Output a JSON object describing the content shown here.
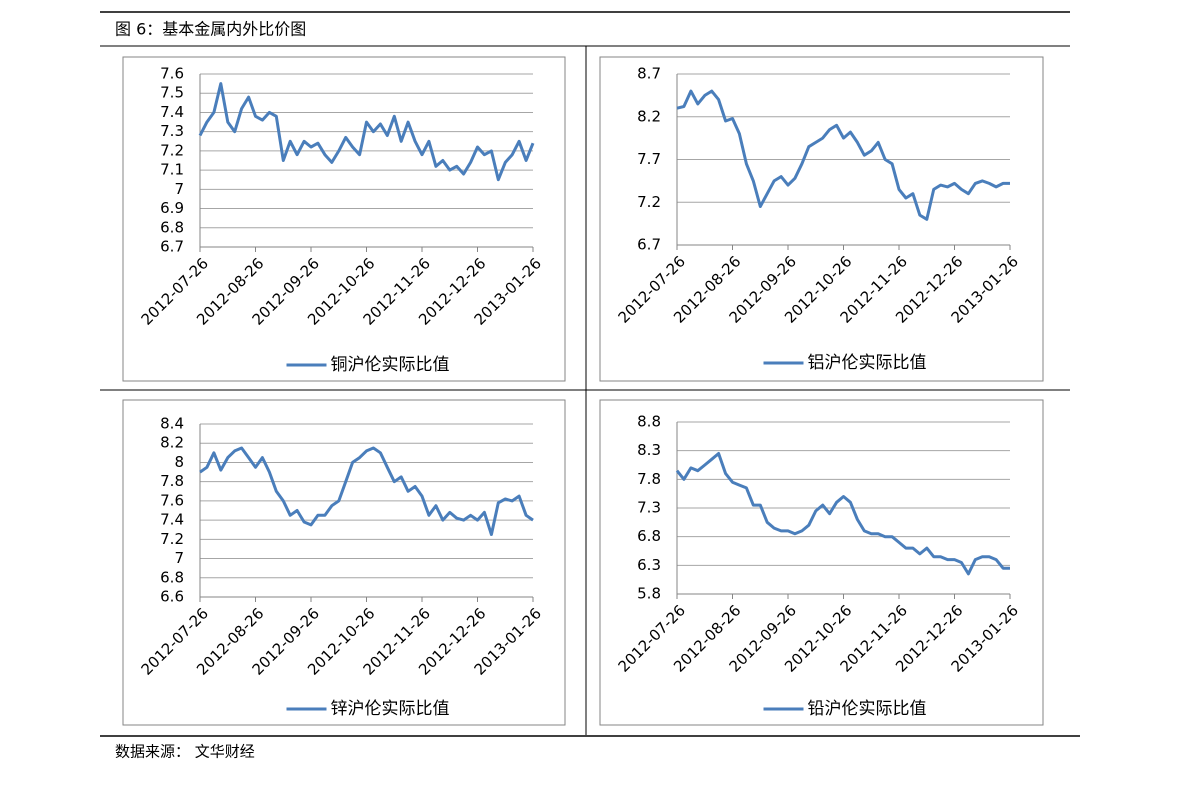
{
  "header": {
    "title": "图 6：基本金属内外比价图"
  },
  "chart_data": [
    {
      "type": "line",
      "ylim": [
        6.7,
        7.6
      ],
      "yticks": [
        6.7,
        6.8,
        6.9,
        7,
        7.1,
        7.2,
        7.3,
        7.4,
        7.5,
        7.6
      ],
      "grid": true,
      "legend": "bottom",
      "categories": [
        "2012-07-26",
        null,
        null,
        null,
        null,
        null,
        null,
        null,
        "2012-08-26",
        null,
        null,
        null,
        null,
        null,
        null,
        null,
        "2012-09-26",
        null,
        null,
        null,
        null,
        null,
        null,
        null,
        "2012-10-26",
        null,
        null,
        null,
        null,
        null,
        null,
        null,
        "2012-11-26",
        null,
        null,
        null,
        null,
        null,
        null,
        null,
        "2012-12-26",
        null,
        null,
        null,
        null,
        null,
        null,
        null,
        "2013-01-26"
      ],
      "series": [
        {
          "name": "铜沪伦实际比值",
          "color": "#4a7ebb",
          "values": [
            7.28,
            7.35,
            7.4,
            7.55,
            7.35,
            7.3,
            7.42,
            7.48,
            7.38,
            7.36,
            7.4,
            7.38,
            7.15,
            7.25,
            7.18,
            7.25,
            7.22,
            7.24,
            7.18,
            7.14,
            7.2,
            7.27,
            7.22,
            7.18,
            7.35,
            7.3,
            7.34,
            7.28,
            7.38,
            7.25,
            7.35,
            7.25,
            7.18,
            7.25,
            7.12,
            7.15,
            7.1,
            7.12,
            7.08,
            7.14,
            7.22,
            7.18,
            7.2,
            7.05,
            7.14,
            7.18,
            7.25,
            7.15,
            7.24
          ]
        }
      ]
    },
    {
      "type": "line",
      "ylim": [
        6.7,
        8.7
      ],
      "yticks": [
        6.7,
        7.2,
        7.7,
        8.2,
        8.7
      ],
      "grid": true,
      "legend": "bottom",
      "categories": [
        "2012-07-26",
        null,
        null,
        null,
        null,
        null,
        null,
        null,
        "2012-08-26",
        null,
        null,
        null,
        null,
        null,
        null,
        null,
        "2012-09-26",
        null,
        null,
        null,
        null,
        null,
        null,
        null,
        "2012-10-26",
        null,
        null,
        null,
        null,
        null,
        null,
        null,
        "2012-11-26",
        null,
        null,
        null,
        null,
        null,
        null,
        null,
        "2012-12-26",
        null,
        null,
        null,
        null,
        null,
        null,
        null,
        "2013-01-26"
      ],
      "series": [
        {
          "name": "铝沪伦实际比值",
          "color": "#4a7ebb",
          "values": [
            8.3,
            8.32,
            8.5,
            8.35,
            8.45,
            8.5,
            8.4,
            8.15,
            8.18,
            8.0,
            7.65,
            7.45,
            7.15,
            7.3,
            7.45,
            7.5,
            7.4,
            7.48,
            7.65,
            7.85,
            7.9,
            7.95,
            8.05,
            8.1,
            7.95,
            8.02,
            7.9,
            7.75,
            7.8,
            7.9,
            7.7,
            7.65,
            7.35,
            7.25,
            7.3,
            7.05,
            7.0,
            7.35,
            7.4,
            7.38,
            7.42,
            7.35,
            7.3,
            7.42,
            7.45,
            7.42,
            7.38,
            7.42,
            7.42
          ]
        }
      ]
    },
    {
      "type": "line",
      "ylim": [
        6.6,
        8.4
      ],
      "yticks": [
        6.6,
        6.8,
        7,
        7.2,
        7.4,
        7.6,
        7.8,
        8,
        8.2,
        8.4
      ],
      "grid": true,
      "legend": "bottom",
      "categories": [
        "2012-07-26",
        null,
        null,
        null,
        null,
        null,
        null,
        null,
        "2012-08-26",
        null,
        null,
        null,
        null,
        null,
        null,
        null,
        "2012-09-26",
        null,
        null,
        null,
        null,
        null,
        null,
        null,
        "2012-10-26",
        null,
        null,
        null,
        null,
        null,
        null,
        null,
        "2012-11-26",
        null,
        null,
        null,
        null,
        null,
        null,
        null,
        "2012-12-26",
        null,
        null,
        null,
        null,
        null,
        null,
        null,
        "2013-01-26"
      ],
      "series": [
        {
          "name": "锌沪伦实际比值",
          "color": "#4a7ebb",
          "values": [
            7.9,
            7.95,
            8.1,
            7.92,
            8.05,
            8.12,
            8.15,
            8.05,
            7.95,
            8.05,
            7.9,
            7.7,
            7.6,
            7.45,
            7.5,
            7.38,
            7.35,
            7.45,
            7.45,
            7.55,
            7.6,
            7.8,
            8.0,
            8.05,
            8.12,
            8.15,
            8.1,
            7.95,
            7.8,
            7.85,
            7.7,
            7.75,
            7.65,
            7.45,
            7.55,
            7.4,
            7.48,
            7.42,
            7.4,
            7.45,
            7.4,
            7.48,
            7.25,
            7.58,
            7.62,
            7.6,
            7.65,
            7.45,
            7.4
          ]
        }
      ]
    },
    {
      "type": "line",
      "ylim": [
        5.8,
        8.8
      ],
      "yticks": [
        5.8,
        6.3,
        6.8,
        7.3,
        7.8,
        8.3,
        8.8
      ],
      "grid": true,
      "legend": "bottom",
      "categories": [
        "2012-07-26",
        null,
        null,
        null,
        null,
        null,
        null,
        null,
        "2012-08-26",
        null,
        null,
        null,
        null,
        null,
        null,
        null,
        "2012-09-26",
        null,
        null,
        null,
        null,
        null,
        null,
        null,
        "2012-10-26",
        null,
        null,
        null,
        null,
        null,
        null,
        null,
        "2012-11-26",
        null,
        null,
        null,
        null,
        null,
        null,
        null,
        "2012-12-26",
        null,
        null,
        null,
        null,
        null,
        null,
        null,
        "2013-01-26"
      ],
      "series": [
        {
          "name": "铅沪伦实际比值",
          "color": "#4a7ebb",
          "values": [
            7.95,
            7.8,
            8.0,
            7.95,
            8.05,
            8.15,
            8.25,
            7.9,
            7.75,
            7.7,
            7.65,
            7.35,
            7.35,
            7.05,
            6.95,
            6.9,
            6.9,
            6.85,
            6.9,
            7.0,
            7.25,
            7.35,
            7.2,
            7.4,
            7.5,
            7.4,
            7.1,
            6.9,
            6.85,
            6.85,
            6.8,
            6.8,
            6.7,
            6.6,
            6.6,
            6.5,
            6.6,
            6.45,
            6.45,
            6.4,
            6.4,
            6.35,
            6.15,
            6.4,
            6.45,
            6.45,
            6.4,
            6.25,
            6.25
          ]
        }
      ]
    }
  ],
  "footer": {
    "source": "数据来源： 文华财经"
  }
}
